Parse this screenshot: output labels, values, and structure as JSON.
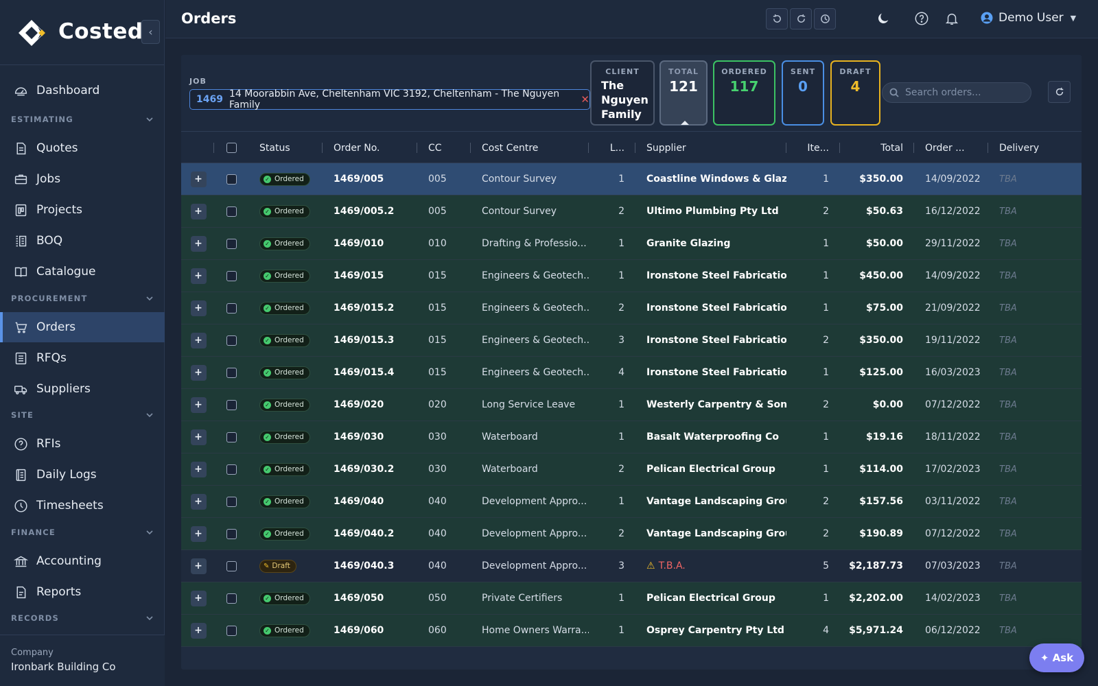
{
  "app": {
    "name": "Costed",
    "page_title": "Orders"
  },
  "sidebar": {
    "items_top": [
      {
        "label": "Dashboard",
        "icon": "dashboard-icon"
      }
    ],
    "sections": [
      {
        "title": "ESTIMATING",
        "items": [
          {
            "label": "Quotes",
            "icon": "document-icon"
          },
          {
            "label": "Jobs",
            "icon": "briefcase-icon"
          },
          {
            "label": "Projects",
            "icon": "projects-icon"
          },
          {
            "label": "BOQ",
            "icon": "boq-icon"
          },
          {
            "label": "Catalogue",
            "icon": "book-icon"
          }
        ]
      },
      {
        "title": "PROCUREMENT",
        "items": [
          {
            "label": "Orders",
            "icon": "cart-icon",
            "active": true
          },
          {
            "label": "RFQs",
            "icon": "list-icon"
          },
          {
            "label": "Suppliers",
            "icon": "truck-icon"
          }
        ]
      },
      {
        "title": "SITE",
        "items": [
          {
            "label": "RFIs",
            "icon": "question-icon"
          },
          {
            "label": "Daily Logs",
            "icon": "log-icon"
          },
          {
            "label": "Timesheets",
            "icon": "clock-icon"
          }
        ]
      },
      {
        "title": "FINANCE",
        "items": [
          {
            "label": "Accounting",
            "icon": "bank-icon"
          },
          {
            "label": "Reports",
            "icon": "report-icon"
          }
        ]
      },
      {
        "title": "RECORDS",
        "items": []
      }
    ],
    "company": {
      "label": "Company",
      "value": "Ironbark Building Co"
    }
  },
  "topbar": {
    "user_name": "Demo User"
  },
  "filters": {
    "job_label": "JOB",
    "job_number": "1469",
    "job_text": "14 Moorabbin Ave, Cheltenham VIC 3192, Cheltenham - The Nguyen Family",
    "client_label": "CLIENT",
    "client_value": "The Nguyen Family",
    "total_label": "TOTAL",
    "total_value": "121",
    "ordered_label": "ORDERED",
    "ordered_value": "117",
    "sent_label": "SENT",
    "sent_value": "0",
    "draft_label": "DRAFT",
    "draft_value": "4",
    "search_placeholder": "Search orders..."
  },
  "table": {
    "columns": [
      "Status",
      "Order No.",
      "CC",
      "Cost Centre",
      "L...",
      "Supplier",
      "Ite...",
      "Total",
      "Order ...",
      "Delivery"
    ],
    "rows": [
      {
        "status": "Ordered",
        "order": "1469/005",
        "cc": "005",
        "cost_centre": "Contour Survey",
        "line": "1",
        "supplier": "Coastline Windows & Glazi...",
        "items": "1",
        "total": "$350.00",
        "date": "14/09/2022",
        "delivery": "TBA",
        "selected": true
      },
      {
        "status": "Ordered",
        "order": "1469/005.2",
        "cc": "005",
        "cost_centre": "Contour Survey",
        "line": "2",
        "supplier": "Ultimo Plumbing Pty Ltd",
        "items": "2",
        "total": "$50.63",
        "date": "16/12/2022",
        "delivery": "TBA"
      },
      {
        "status": "Ordered",
        "order": "1469/010",
        "cc": "010",
        "cost_centre": "Drafting & Professio...",
        "line": "1",
        "supplier": "Granite Glazing",
        "items": "1",
        "total": "$50.00",
        "date": "29/11/2022",
        "delivery": "TBA"
      },
      {
        "status": "Ordered",
        "order": "1469/015",
        "cc": "015",
        "cost_centre": "Engineers & Geotech...",
        "line": "1",
        "supplier": "Ironstone Steel Fabrication",
        "items": "1",
        "total": "$450.00",
        "date": "14/09/2022",
        "delivery": "TBA"
      },
      {
        "status": "Ordered",
        "order": "1469/015.2",
        "cc": "015",
        "cost_centre": "Engineers & Geotech...",
        "line": "2",
        "supplier": "Ironstone Steel Fabrication",
        "items": "1",
        "total": "$75.00",
        "date": "21/09/2022",
        "delivery": "TBA"
      },
      {
        "status": "Ordered",
        "order": "1469/015.3",
        "cc": "015",
        "cost_centre": "Engineers & Geotech...",
        "line": "3",
        "supplier": "Ironstone Steel Fabrication",
        "items": "2",
        "total": "$350.00",
        "date": "19/11/2022",
        "delivery": "TBA"
      },
      {
        "status": "Ordered",
        "order": "1469/015.4",
        "cc": "015",
        "cost_centre": "Engineers & Geotech...",
        "line": "4",
        "supplier": "Ironstone Steel Fabrication",
        "items": "1",
        "total": "$125.00",
        "date": "16/03/2023",
        "delivery": "TBA"
      },
      {
        "status": "Ordered",
        "order": "1469/020",
        "cc": "020",
        "cost_centre": "Long Service Leave",
        "line": "1",
        "supplier": "Westerly Carpentry & Sons",
        "items": "2",
        "total": "$0.00",
        "date": "07/12/2022",
        "delivery": "TBA"
      },
      {
        "status": "Ordered",
        "order": "1469/030",
        "cc": "030",
        "cost_centre": "Waterboard",
        "line": "1",
        "supplier": "Basalt Waterproofing Co",
        "items": "1",
        "total": "$19.16",
        "date": "18/11/2022",
        "delivery": "TBA"
      },
      {
        "status": "Ordered",
        "order": "1469/030.2",
        "cc": "030",
        "cost_centre": "Waterboard",
        "line": "2",
        "supplier": "Pelican Electrical Group",
        "items": "1",
        "total": "$114.00",
        "date": "17/02/2023",
        "delivery": "TBA"
      },
      {
        "status": "Ordered",
        "order": "1469/040",
        "cc": "040",
        "cost_centre": "Development Appro...",
        "line": "1",
        "supplier": "Vantage Landscaping Group",
        "items": "2",
        "total": "$157.56",
        "date": "03/11/2022",
        "delivery": "TBA"
      },
      {
        "status": "Ordered",
        "order": "1469/040.2",
        "cc": "040",
        "cost_centre": "Development Appro...",
        "line": "2",
        "supplier": "Vantage Landscaping Group",
        "items": "2",
        "total": "$190.89",
        "date": "07/12/2022",
        "delivery": "TBA"
      },
      {
        "status": "Draft",
        "order": "1469/040.3",
        "cc": "040",
        "cost_centre": "Development Appro...",
        "line": "3",
        "supplier": "T.B.A.",
        "items": "5",
        "total": "$2,187.73",
        "date": "07/03/2023",
        "delivery": "TBA",
        "supplier_tba": true
      },
      {
        "status": "Ordered",
        "order": "1469/050",
        "cc": "050",
        "cost_centre": "Private Certifiers",
        "line": "1",
        "supplier": "Pelican Electrical Group",
        "items": "1",
        "total": "$2,202.00",
        "date": "14/02/2023",
        "delivery": "TBA"
      },
      {
        "status": "Ordered",
        "order": "1469/060",
        "cc": "060",
        "cost_centre": "Home Owners Warra...",
        "line": "1",
        "supplier": "Osprey Carpentry Pty Ltd",
        "items": "4",
        "total": "$5,971.24",
        "date": "06/12/2022",
        "delivery": "TBA"
      }
    ]
  },
  "ask_button": "✦ Ask",
  "colors": {
    "accent": "#5a93e8",
    "ordered": "#47d16f",
    "sent": "#5aa0f4",
    "draft": "#f0bd2a",
    "ask": "#7c7ef0"
  }
}
